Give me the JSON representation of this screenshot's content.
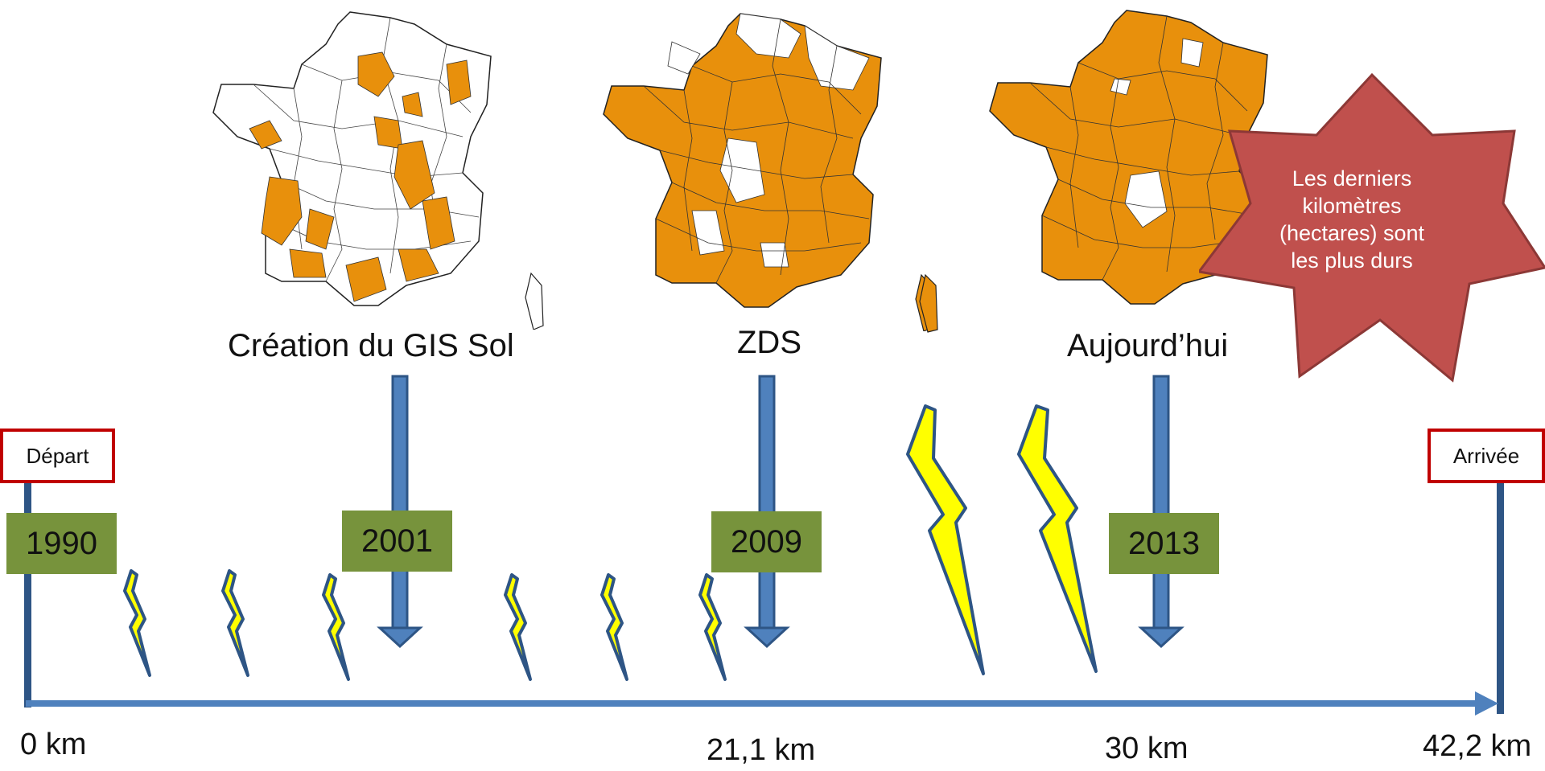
{
  "stages": [
    {
      "caption": "Création du GIS Sol",
      "year": "1990"
    },
    {
      "caption": "",
      "year": "2001"
    },
    {
      "caption": "ZDS",
      "year": "2009"
    },
    {
      "caption": "Aujourd’hui",
      "year": "2013"
    }
  ],
  "flags": {
    "start": "Départ",
    "finish": "Arrivée"
  },
  "distances": [
    "0 km",
    "21,1 km",
    "30 km",
    "42,2 km"
  ],
  "callout": [
    "Les derniers",
    "kilomètres",
    "(hectares) sont",
    "les plus durs"
  ],
  "colors": {
    "map_fill": "#e8900c",
    "timeline": "#4f81bd",
    "year_box": "#77933c",
    "flag_border": "#c00000",
    "star": "#c0504d",
    "lightning": "#ffff00"
  },
  "icons": [
    "france-map",
    "lightning-icon",
    "down-arrow",
    "star-callout"
  ]
}
